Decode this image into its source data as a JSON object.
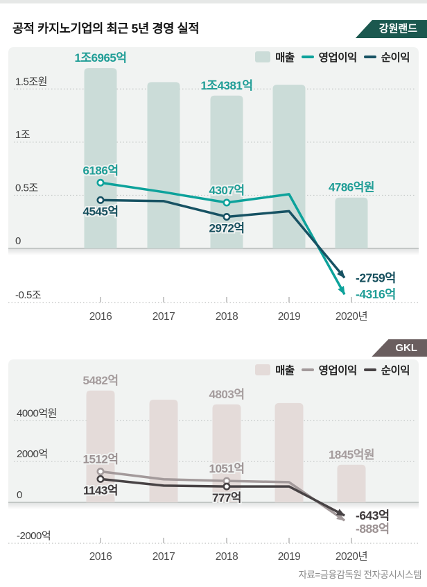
{
  "page": {
    "title": "공적 카지노기업의 최근 5년 경영 실적",
    "source": "자료=금융감독원 전자공시시스템"
  },
  "charts": [
    {
      "company": "강원랜드",
      "badge": {
        "label": "강원랜드",
        "color": "#1b584f"
      },
      "legend": {
        "revenue": "매출",
        "operating": "영업이익",
        "net": "순이익"
      },
      "colors": {
        "bar": "#cbdcd8",
        "operating_line": "#0da29b",
        "net_line": "#175263",
        "bar_label": "#1f9d96",
        "operating_label": "#1f9d96",
        "net_label": "#17505e",
        "panel": "#f1f3f2"
      },
      "chart_data": {
        "type": "bar+line",
        "title": "강원랜드 최근 5년 경영 실적",
        "unit": "억원",
        "categories": [
          "2016",
          "2017",
          "2018",
          "2019",
          "2020년"
        ],
        "bar_series": {
          "name": "매출",
          "values": [
            16965,
            15650,
            14381,
            15400,
            4786
          ],
          "labels": [
            "1조6965억",
            null,
            "1조4381억",
            null,
            "4786억원"
          ]
        },
        "series": [
          {
            "name": "영업이익",
            "values": [
              6186,
              5300,
              4307,
              5100,
              -4316
            ],
            "labels": [
              "6186억",
              null,
              "4307억",
              null,
              "-4316억"
            ]
          },
          {
            "name": "순이익",
            "values": [
              4545,
              4450,
              2972,
              3500,
              -2759
            ],
            "labels": [
              "4545억",
              null,
              "2972억",
              null,
              "-2759억"
            ]
          }
        ],
        "yticks": [
          {
            "label": "1.5조원",
            "value": 15000
          },
          {
            "label": "1조",
            "value": 10000
          },
          {
            "label": "0.5조",
            "value": 5000
          },
          {
            "label": "0",
            "value": 0
          },
          {
            "label": "-0.5조",
            "value": -5000
          }
        ],
        "ylim": [
          -6000,
          19000
        ],
        "grid": "dashed-horizontal",
        "legend_position": "top-right"
      }
    },
    {
      "company": "GKL",
      "badge": {
        "label": "GKL",
        "color": "#6a5e5f"
      },
      "legend": {
        "revenue": "매출",
        "operating": "영업이익",
        "net": "순이익"
      },
      "colors": {
        "bar": "#e4dbd9",
        "operating_line": "#a39a9b",
        "net_line": "#474244",
        "bar_label": "#a59c9d",
        "operating_label": "#9c9293",
        "net_label": "#3e393b",
        "panel": "#f1f3f2"
      },
      "chart_data": {
        "type": "bar+line",
        "title": "GKL 최근 5년 경영 실적",
        "unit": "억원",
        "categories": [
          "2016",
          "2017",
          "2018",
          "2019",
          "2020년"
        ],
        "bar_series": {
          "name": "매출",
          "values": [
            5482,
            5030,
            4803,
            4870,
            1845
          ],
          "labels": [
            "5482억",
            null,
            "4803억",
            null,
            "1845억원"
          ]
        },
        "series": [
          {
            "name": "영업이익",
            "values": [
              1512,
              1130,
              1051,
              990,
              -888
            ],
            "labels": [
              "1512억",
              null,
              "1051억",
              null,
              "-888억"
            ]
          },
          {
            "name": "순이익",
            "values": [
              1143,
              820,
              777,
              780,
              -643
            ],
            "labels": [
              "1143억",
              null,
              "777억",
              null,
              "-643억"
            ]
          }
        ],
        "yticks": [
          {
            "label": "4000억원",
            "value": 4000
          },
          {
            "label": "2000억",
            "value": 2000
          },
          {
            "label": "0",
            "value": 0
          },
          {
            "label": "-2000억",
            "value": -2000
          }
        ],
        "ylim": [
          -2500,
          6000
        ],
        "grid": "dashed-horizontal",
        "legend_position": "top-right"
      }
    }
  ]
}
